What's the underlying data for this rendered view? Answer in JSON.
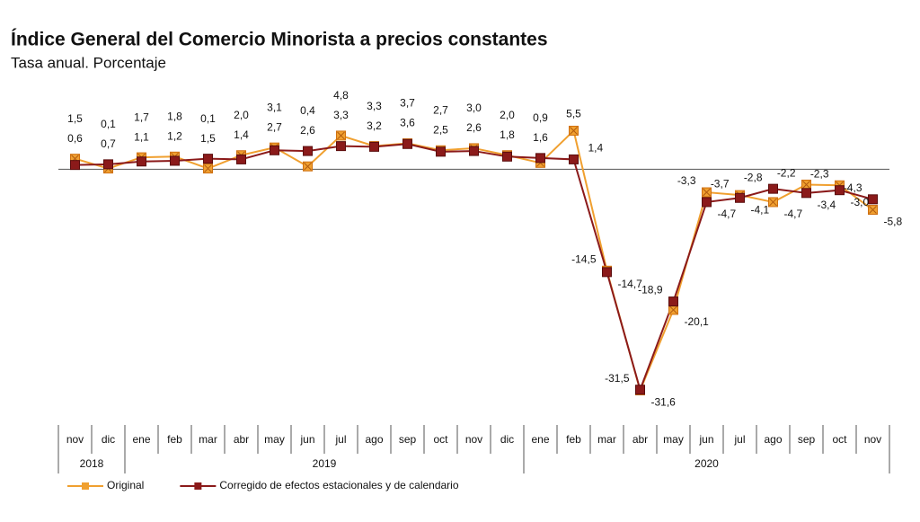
{
  "chart_data": {
    "type": "line",
    "title": "Índice General del Comercio Minorista a precios constantes",
    "subtitle": "Tasa anual. Porcentaje",
    "category_groups": [
      {
        "label": "2018",
        "categories": [
          "nov",
          "dic"
        ]
      },
      {
        "label": "2019",
        "categories": [
          "ene",
          "feb",
          "mar",
          "abr",
          "may",
          "jun",
          "jul",
          "ago",
          "sep",
          "oct",
          "nov",
          "dic"
        ]
      },
      {
        "label": "2020",
        "categories": [
          "ene",
          "feb",
          "mar",
          "abr",
          "may",
          "jun",
          "jul",
          "ago",
          "sep",
          "oct",
          "nov"
        ]
      }
    ],
    "ylim": [
      -35,
      8
    ],
    "series": [
      {
        "name": "Original",
        "color": "#f0a030",
        "values": [
          1.5,
          0.1,
          1.7,
          1.8,
          0.1,
          2.0,
          3.1,
          0.4,
          4.8,
          3.3,
          3.7,
          2.7,
          3.0,
          2.0,
          0.9,
          5.5,
          -14.5,
          -31.6,
          -20.1,
          -3.3,
          -3.7,
          -4.7,
          -2.2,
          -2.3,
          -5.8
        ],
        "value_labels": [
          "1,5",
          "0,1",
          "1,7",
          "1,8",
          "0,1",
          "2,0",
          "3,1",
          "0,4",
          "4,8",
          "3,3",
          "3,7",
          "2,7",
          "3,0",
          "2,0",
          "0,9",
          "5,5",
          "-14,5",
          "-31,6",
          "-20,1",
          "-3,3",
          "-3,7",
          "-4,7",
          "-2,2",
          "-2,3",
          "-5,8"
        ]
      },
      {
        "name": "Corregido de efectos estacionales y de calendario",
        "color": "#8b1a1a",
        "values": [
          0.6,
          0.7,
          1.1,
          1.2,
          1.5,
          1.4,
          2.7,
          2.6,
          3.3,
          3.2,
          3.6,
          2.5,
          2.6,
          1.8,
          1.6,
          1.4,
          -14.7,
          -31.5,
          -18.9,
          -4.7,
          -4.1,
          -2.8,
          -3.4,
          -3.0,
          -4.3
        ],
        "value_labels": [
          "0,6",
          "0,7",
          "1,1",
          "1,2",
          "1,5",
          "1,4",
          "2,7",
          "2,6",
          "3,3",
          "3,2",
          "3,6",
          "2,5",
          "2,6",
          "1,8",
          "1,6",
          "1,4",
          "-14,7",
          "-31,5",
          "-18,9",
          "-4,7",
          "-4,1",
          "-2,8",
          "-3,4",
          "-3,0",
          "-4,3"
        ]
      }
    ]
  }
}
